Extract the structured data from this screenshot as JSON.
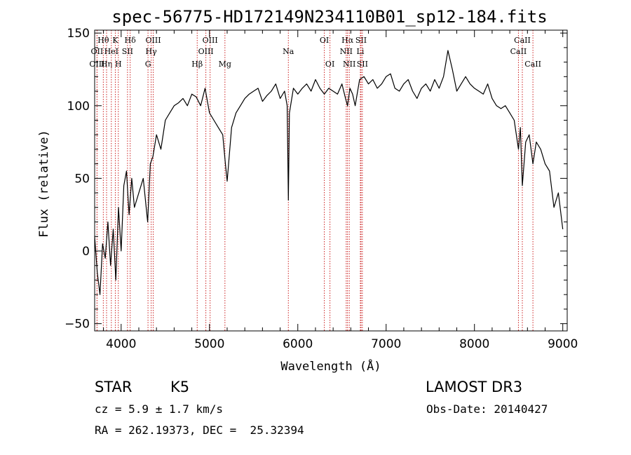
{
  "chart_data": {
    "type": "line",
    "title": "spec-56775-HD172149N234110B01_sp12-184.fits",
    "xlabel": "Wavelength (Å)",
    "ylabel": "Flux (relative)",
    "xlim": [
      3700,
      9050
    ],
    "ylim": [
      -55,
      152
    ],
    "xticks": [
      4000,
      5000,
      6000,
      7000,
      8000,
      9000
    ],
    "yticks": [
      -50,
      0,
      50,
      100,
      150
    ],
    "grid": false,
    "series": [
      {
        "name": "flux",
        "x": [
          3700,
          3730,
          3760,
          3790,
          3820,
          3850,
          3880,
          3910,
          3940,
          3970,
          4000,
          4030,
          4060,
          4090,
          4120,
          4150,
          4200,
          4250,
          4300,
          4330,
          4360,
          4400,
          4450,
          4500,
          4550,
          4600,
          4650,
          4700,
          4750,
          4800,
          4850,
          4900,
          4950,
          5000,
          5050,
          5100,
          5150,
          5180,
          5200,
          5250,
          5300,
          5350,
          5400,
          5450,
          5500,
          5550,
          5600,
          5650,
          5700,
          5750,
          5800,
          5850,
          5880,
          5893,
          5905,
          5950,
          6000,
          6050,
          6100,
          6150,
          6200,
          6250,
          6300,
          6350,
          6400,
          6450,
          6500,
          6540,
          6563,
          6590,
          6620,
          6650,
          6700,
          6750,
          6800,
          6850,
          6900,
          6950,
          7000,
          7050,
          7100,
          7150,
          7200,
          7250,
          7300,
          7350,
          7400,
          7450,
          7500,
          7550,
          7600,
          7650,
          7700,
          7750,
          7800,
          7850,
          7900,
          7950,
          8000,
          8050,
          8100,
          8150,
          8200,
          8250,
          8300,
          8350,
          8400,
          8450,
          8498,
          8520,
          8542,
          8580,
          8620,
          8662,
          8700,
          8750,
          8800,
          8850,
          8900,
          8950,
          9000
        ],
        "values": [
          10,
          -15,
          -30,
          5,
          -5,
          20,
          -10,
          15,
          -20,
          30,
          0,
          45,
          55,
          25,
          50,
          30,
          40,
          50,
          20,
          60,
          65,
          80,
          70,
          90,
          95,
          100,
          102,
          105,
          100,
          108,
          106,
          100,
          112,
          95,
          90,
          85,
          80,
          60,
          48,
          85,
          95,
          100,
          105,
          108,
          110,
          112,
          103,
          107,
          110,
          115,
          105,
          110,
          100,
          35,
          95,
          112,
          108,
          112,
          115,
          110,
          118,
          112,
          108,
          112,
          110,
          108,
          115,
          105,
          100,
          112,
          108,
          100,
          118,
          120,
          115,
          118,
          112,
          115,
          120,
          122,
          112,
          110,
          115,
          118,
          110,
          105,
          112,
          115,
          110,
          118,
          112,
          120,
          138,
          125,
          110,
          115,
          120,
          115,
          112,
          110,
          108,
          115,
          105,
          100,
          98,
          100,
          95,
          90,
          70,
          85,
          45,
          75,
          80,
          60,
          75,
          70,
          60,
          55,
          30,
          40,
          15
        ]
      }
    ],
    "spectral_lines": [
      {
        "label": "Hθ",
        "x": 3798,
        "row": 0
      },
      {
        "label": "OII",
        "x": 3727,
        "row": 1
      },
      {
        "label": "OIII",
        "x": 3727,
        "row": 2
      },
      {
        "label": "Hη",
        "x": 3835,
        "row": 2
      },
      {
        "label": "K",
        "x": 3934,
        "row": 0
      },
      {
        "label": "HeI",
        "x": 3889,
        "row": 1
      },
      {
        "label": "H",
        "x": 3968,
        "row": 2
      },
      {
        "label": "SII",
        "x": 4072,
        "row": 1
      },
      {
        "label": "Hδ",
        "x": 4102,
        "row": 0
      },
      {
        "label": "OIII",
        "x": 4363,
        "row": 0
      },
      {
        "label": "Hγ",
        "x": 4340,
        "row": 1
      },
      {
        "label": "G",
        "x": 4304,
        "row": 2
      },
      {
        "label": "Hβ",
        "x": 4861,
        "row": 2
      },
      {
        "label": "OIII",
        "x": 5007,
        "row": 0
      },
      {
        "label": "OIII",
        "x": 4959,
        "row": 1
      },
      {
        "label": "Mg",
        "x": 5175,
        "row": 2
      },
      {
        "label": "Na",
        "x": 5893,
        "row": 1
      },
      {
        "label": "OI",
        "x": 6300,
        "row": 0
      },
      {
        "label": "OI",
        "x": 6364,
        "row": 2
      },
      {
        "label": "Hα",
        "x": 6563,
        "row": 0
      },
      {
        "label": "SII",
        "x": 6716,
        "row": 0
      },
      {
        "label": "NII",
        "x": 6548,
        "row": 1
      },
      {
        "label": "Li",
        "x": 6708,
        "row": 1
      },
      {
        "label": "NII",
        "x": 6583,
        "row": 2
      },
      {
        "label": "SII",
        "x": 6731,
        "row": 2
      },
      {
        "label": "CaII",
        "x": 8542,
        "row": 0
      },
      {
        "label": "CaII",
        "x": 8498,
        "row": 1
      },
      {
        "label": "CaII",
        "x": 8662,
        "row": 2
      }
    ]
  },
  "info": {
    "object_class": "STAR",
    "subclass": "K5",
    "survey": "LAMOST DR3",
    "cz": "cz = 5.9 ± 1.7 km/s",
    "obs_date": "Obs-Date: 20140427",
    "coords": "RA = 262.19373, DEC =  25.32394"
  }
}
